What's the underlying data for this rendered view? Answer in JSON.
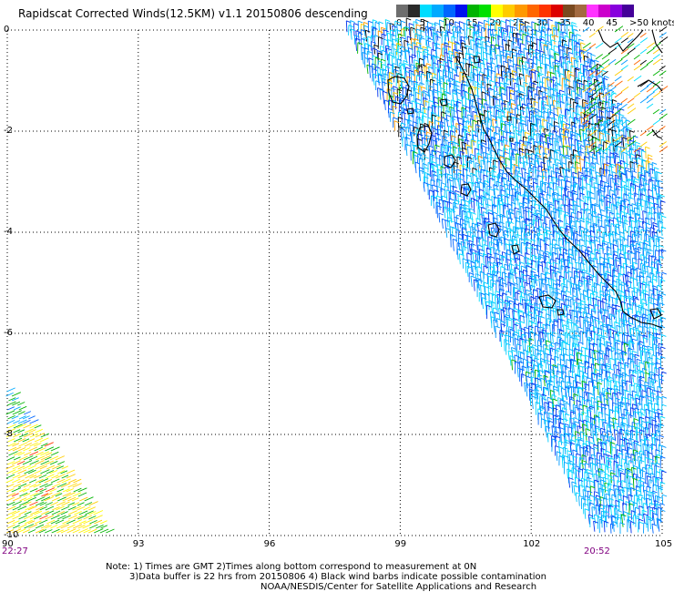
{
  "title": "Rapidscat Corrected Winds(12.5KM) v1.1 20150806 descending",
  "colorbar": {
    "colors": [
      "#6e6e6e",
      "#2a2a2a",
      "#00ddff",
      "#00aaff",
      "#0066ff",
      "#0011ee",
      "#00b400",
      "#00e000",
      "#ffff00",
      "#ffcc00",
      "#ff9900",
      "#ff6600",
      "#ff3300",
      "#dd0000",
      "#7a4a20",
      "#a36a40",
      "#ff33ff",
      "#cc00cc",
      "#8800dd",
      "#440099"
    ],
    "labels": [
      {
        "v": 0,
        "text": "0"
      },
      {
        "v": 5,
        "text": "5"
      },
      {
        "v": 10,
        "text": "10"
      },
      {
        "v": 15,
        "text": "15"
      },
      {
        "v": 20,
        "text": "20"
      },
      {
        "v": 25,
        "text": "25"
      },
      {
        "v": 30,
        "text": "30"
      },
      {
        "v": 35,
        "text": "35"
      },
      {
        "v": 40,
        "text": "40"
      },
      {
        "v": 45,
        "text": "45"
      },
      {
        "v": 50,
        "text": ">50 knots"
      }
    ]
  },
  "map": {
    "lon_range": [
      90,
      105
    ],
    "lat_range": [
      -10,
      0
    ],
    "lon_ticks": [
      "90",
      "93",
      "96",
      "99",
      "102",
      "105"
    ],
    "lat_ticks": [
      "0",
      "-2",
      "-4",
      "-6",
      "-8",
      "-10"
    ],
    "grid": "dotted",
    "coast_color": "#000000"
  },
  "times": {
    "left": "22:27",
    "right": "20:52",
    "color": "#800080"
  },
  "notes": [
    "Note: 1) Times are GMT 2)Times along bottom correspond to measurement at 0N",
    "3)Data buffer is 22 hrs from 20150806 4) Black wind barbs indicate possible contamination",
    "NOAA/NESDIS/Center for Satellite Applications and Research"
  ]
}
